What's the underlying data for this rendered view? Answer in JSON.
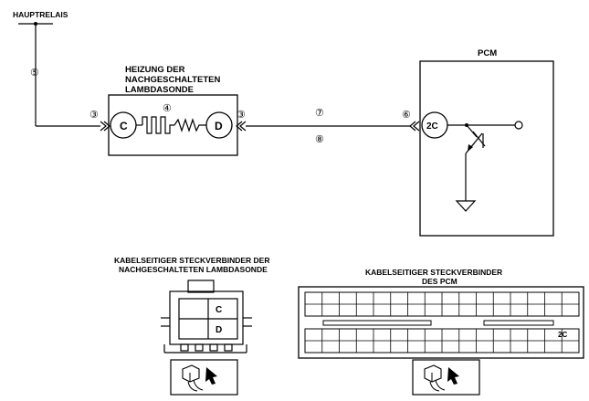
{
  "labels": {
    "main_relay": "HAUPTRELAIS",
    "heater_title_1": "HEIZUNG DER",
    "heater_title_2": "NACHGESCHALTETEN",
    "heater_title_3": "LAMBDASONDE",
    "pcm": "PCM",
    "pin_c": "C",
    "pin_d": "D",
    "pin_2c": "2C",
    "connector_sensor_1": "KABELSEITIGER STECKVERBINDER DER",
    "connector_sensor_2": "NACHGESCHALTETEN LAMBDASONDE",
    "connector_pcm_1": "KABELSEITIGER STECKVERBINDER",
    "connector_pcm_2": "DES PCM",
    "sensor_conn_c": "C",
    "sensor_conn_d": "D",
    "pcm_conn_2c": "2C"
  },
  "markers": {
    "m5": "⑤",
    "m3_left": "③",
    "m4": "④",
    "m3_right": "③",
    "m7": "⑦",
    "m8": "⑧",
    "m6": "⑥"
  },
  "icons": {
    "connector_view_sensor": "connector-view-icon",
    "connector_view_pcm": "connector-view-icon"
  }
}
